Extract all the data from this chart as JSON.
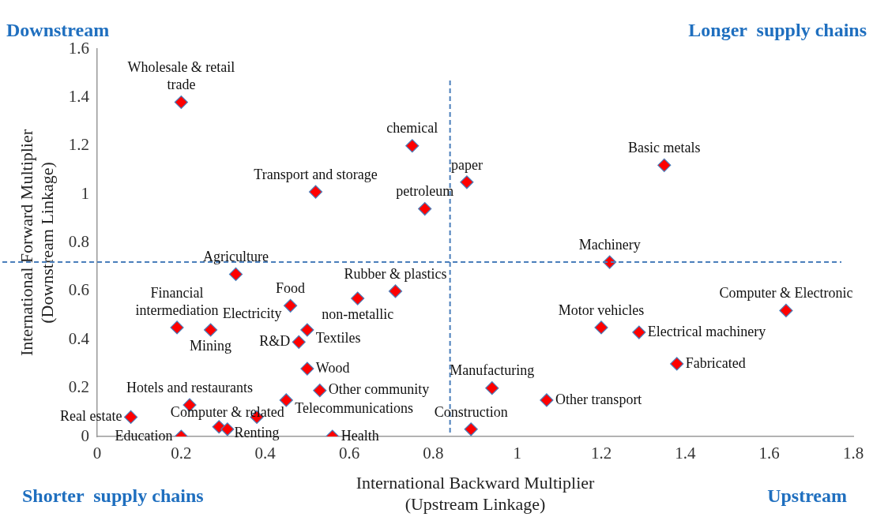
{
  "chart_data": {
    "type": "scatter",
    "xlabel": "International Backward Multiplier\n(Upstream Linkage)",
    "ylabel": "International Forward Multiplier\n(Downstream Linkage)",
    "x": [
      0.2,
      0.75,
      1.35,
      0.88,
      0.52,
      0.78,
      1.22,
      0.33,
      0.71,
      0.62,
      1.64,
      0.46,
      0.19,
      0.27,
      0.5,
      0.48,
      0.5,
      0.53,
      0.45,
      0.22,
      0.08,
      0.38,
      0.29,
      0.31,
      0.2,
      0.56,
      1.2,
      1.29,
      1.38,
      0.94,
      1.07,
      0.89
    ],
    "values": [
      1.38,
      1.2,
      1.12,
      1.05,
      1.01,
      0.94,
      0.72,
      0.67,
      0.6,
      0.57,
      0.52,
      0.54,
      0.45,
      0.44,
      0.44,
      0.39,
      0.28,
      0.19,
      0.15,
      0.13,
      0.08,
      0.08,
      0.04,
      0.03,
      0.0,
      0.0,
      0.45,
      0.43,
      0.3,
      0.2,
      0.15,
      0.03
    ],
    "color": "#ff0000",
    "marker": "diamond",
    "grid": false,
    "legend": false,
    "xlim": [
      0,
      1.8
    ],
    "xticks": [
      0,
      0.2,
      0.4,
      0.6,
      0.8,
      1,
      1.2,
      1.4,
      1.6,
      1.8
    ],
    "ylim": [
      0,
      1.6
    ],
    "yticks": [
      0,
      0.2,
      0.4,
      0.6,
      0.8,
      1,
      1.2,
      1.4,
      1.6
    ],
    "ref_lines": [
      {
        "axis": "x",
        "value": 0.84,
        "color": "#4a7ebb",
        "line_style": "dashed"
      },
      {
        "axis": "y",
        "value": 0.72,
        "color": "#4a7ebb",
        "line_style": "dashed"
      }
    ],
    "annotations": [
      "Downstream",
      "Longer  supply chains",
      "Shorter  supply chains",
      "Upstream",
      {
        "text": "Wholesale & retail\ntrade",
        "x": 0.2,
        "y": 1.38
      },
      {
        "text": "chemical",
        "x": 0.75,
        "y": 1.2
      },
      {
        "text": "Basic metals",
        "x": 1.35,
        "y": 1.12
      },
      {
        "text": "paper",
        "x": 0.88,
        "y": 1.05
      },
      {
        "text": "Transport and storage",
        "x": 0.52,
        "y": 1.01
      },
      {
        "text": "petroleum",
        "x": 0.78,
        "y": 0.94
      },
      {
        "text": "Machinery",
        "x": 1.22,
        "y": 0.72
      },
      {
        "text": "Agriculture",
        "x": 0.33,
        "y": 0.67
      },
      {
        "text": "Rubber & plastics",
        "x": 0.71,
        "y": 0.6
      },
      {
        "text": "non-metallic",
        "x": 0.62,
        "y": 0.57
      },
      {
        "text": "Computer & Electronic",
        "x": 1.64,
        "y": 0.52
      },
      {
        "text": "Food",
        "x": 0.46,
        "y": 0.54
      },
      {
        "text": "Electricity",
        "x": 0.46,
        "y": 0.54
      },
      {
        "text": "Financial\nintermediation",
        "x": 0.19,
        "y": 0.45
      },
      {
        "text": "Mining",
        "x": 0.27,
        "y": 0.44
      },
      {
        "text": "Textiles",
        "x": 0.5,
        "y": 0.44
      },
      {
        "text": "R&D",
        "x": 0.48,
        "y": 0.39
      },
      {
        "text": "Wood",
        "x": 0.5,
        "y": 0.28
      },
      {
        "text": "Other community",
        "x": 0.53,
        "y": 0.19
      },
      {
        "text": "Telecommunications",
        "x": 0.45,
        "y": 0.15
      },
      {
        "text": "Hotels and restaurants",
        "x": 0.22,
        "y": 0.13
      },
      {
        "text": "Real estate",
        "x": 0.08,
        "y": 0.08
      },
      {
        "text": "Renting",
        "x": 0.38,
        "y": 0.08
      },
      {
        "text": "Computer & related",
        "x": 0.31,
        "y": 0.03
      },
      {
        "text": "Education",
        "x": 0.2,
        "y": 0.0
      },
      {
        "text": "Health",
        "x": 0.56,
        "y": 0.0
      },
      {
        "text": "Motor vehicles",
        "x": 1.2,
        "y": 0.45
      },
      {
        "text": "Electrical machinery",
        "x": 1.29,
        "y": 0.43
      },
      {
        "text": "Fabricated",
        "x": 1.38,
        "y": 0.3
      },
      {
        "text": "Manufacturing",
        "x": 0.94,
        "y": 0.2
      },
      {
        "text": "Other transport",
        "x": 1.07,
        "y": 0.15
      },
      {
        "text": "Construction",
        "x": 0.89,
        "y": 0.03
      }
    ]
  }
}
